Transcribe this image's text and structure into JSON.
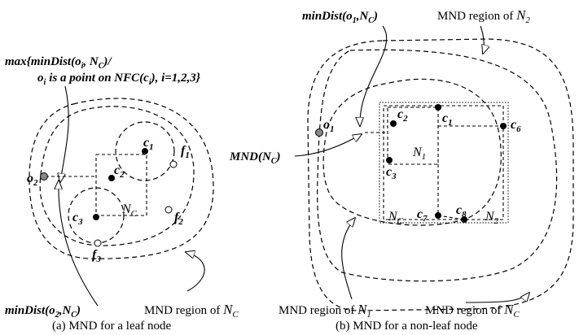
{
  "left": {
    "annotation_line1": "max{minDist(o",
    "annotation_line1_sub": "i",
    "annotation_line1_mid": ", N",
    "annotation_line1_sub2": "C",
    "annotation_line1_end": ")/",
    "annotation_line2": "o",
    "annotation_line2_sub": "i",
    "annotation_line2_mid": "is a point on NFC(c",
    "annotation_line2_sub2": "i",
    "annotation_line2_end": "), i=1,2,3}",
    "o2_main": "o",
    "o2_sub": "2",
    "c1_main": "c",
    "c1_sub": "1",
    "c2_main": "c",
    "c2_sub": "2",
    "c3_main": "c",
    "c3_sub": "3",
    "f1_main": "f",
    "f1_sub": "1",
    "f2_main": "f",
    "f2_sub": "2",
    "f3_main": "f",
    "f3_sub": "3",
    "nc_main": "N",
    "nc_sub": "C",
    "bottom_label_main": "minDist(o",
    "bottom_label_sub": "2",
    "bottom_label_mid": ",N",
    "bottom_label_sub2": "C",
    "bottom_label_end": ")",
    "region_label_main": "MND region of ",
    "region_label_n": "N",
    "region_label_sub": "C",
    "caption": "(a) MND for a leaf node"
  },
  "right": {
    "top_label_main": "minDist(o",
    "top_label_sub": "1",
    "top_label_mid": ",N",
    "top_label_sub2": "C",
    "top_label_end": ")",
    "top_region_main": "MND region of ",
    "top_region_n": "N",
    "top_region_sub": "2",
    "mnd_main": "MND(N",
    "mnd_sub": "C",
    "mnd_end": ")",
    "o1_main": "o",
    "o1_sub": "1",
    "c1_main": "c",
    "c1_sub": "1",
    "c2_main": "c",
    "c2_sub": "2",
    "c3_main": "c",
    "c3_sub": "3",
    "c6_main": "c",
    "c6_sub": "6",
    "c7_main": "c",
    "c7_sub": "7",
    "c8_main": "c",
    "c8_sub": "8",
    "n1_main": "N",
    "n1_sub": "1",
    "nc_main": "N",
    "nc_sub": "C",
    "n2_main": "N",
    "n2_sub": "2",
    "bottom_region1_main": "MND region of ",
    "bottom_region1_n": "N",
    "bottom_region1_sub": "1",
    "bottom_region2_main": "MND region of ",
    "bottom_region2_n": "N",
    "bottom_region2_sub": "C",
    "caption": "(b) MND for a non-leaf node"
  }
}
